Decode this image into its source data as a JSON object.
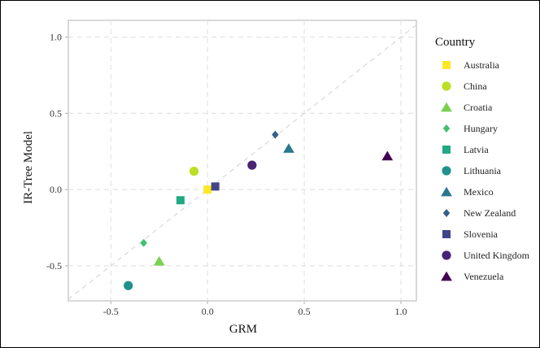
{
  "chart_data": {
    "type": "scatter",
    "xlabel": "GRM",
    "ylabel": "IR-Tree Model",
    "xlim": [
      -0.72,
      1.08
    ],
    "ylim": [
      -0.73,
      1.11
    ],
    "x_ticks": [
      -0.5,
      0.0,
      0.5,
      1.0
    ],
    "x_tick_labels": [
      "-0.5",
      "0.0",
      "0.5",
      "1.0"
    ],
    "y_ticks": [
      -0.5,
      0.0,
      0.5,
      1.0
    ],
    "y_tick_labels": [
      "-0.5",
      "0.0",
      "0.5",
      "1.0"
    ],
    "grid": true,
    "reference_line": "identity",
    "legend": {
      "title": "Country",
      "position": "right"
    },
    "series": [
      {
        "name": "Australia",
        "shape": "square",
        "color": "#FDE725",
        "x": [
          0.0
        ],
        "y": [
          0.0
        ]
      },
      {
        "name": "China",
        "shape": "circle",
        "color": "#BCDF27",
        "x": [
          -0.07
        ],
        "y": [
          0.12
        ]
      },
      {
        "name": "Croatia",
        "shape": "triangle",
        "color": "#7AD151",
        "x": [
          -0.25
        ],
        "y": [
          -0.47
        ]
      },
      {
        "name": "Hungary",
        "shape": "diamond",
        "color": "#44BF70",
        "x": [
          -0.33
        ],
        "y": [
          -0.35
        ]
      },
      {
        "name": "Latvia",
        "shape": "square",
        "color": "#22A884",
        "x": [
          -0.14
        ],
        "y": [
          -0.07
        ]
      },
      {
        "name": "Lithuania",
        "shape": "circle",
        "color": "#21918C",
        "x": [
          -0.41
        ],
        "y": [
          -0.63
        ]
      },
      {
        "name": "Mexico",
        "shape": "triangle",
        "color": "#2A788E",
        "x": [
          0.42
        ],
        "y": [
          0.27
        ]
      },
      {
        "name": "New Zealand",
        "shape": "diamond",
        "color": "#355F8D",
        "x": [
          0.35
        ],
        "y": [
          0.36
        ]
      },
      {
        "name": "Slovenia",
        "shape": "square",
        "color": "#414487",
        "x": [
          0.04
        ],
        "y": [
          0.02
        ]
      },
      {
        "name": "United Kingdom",
        "shape": "circle",
        "color": "#482475",
        "x": [
          0.23
        ],
        "y": [
          0.16
        ]
      },
      {
        "name": "Venezuela",
        "shape": "triangle",
        "color": "#440154",
        "x": [
          0.93
        ],
        "y": [
          0.22
        ]
      }
    ]
  }
}
